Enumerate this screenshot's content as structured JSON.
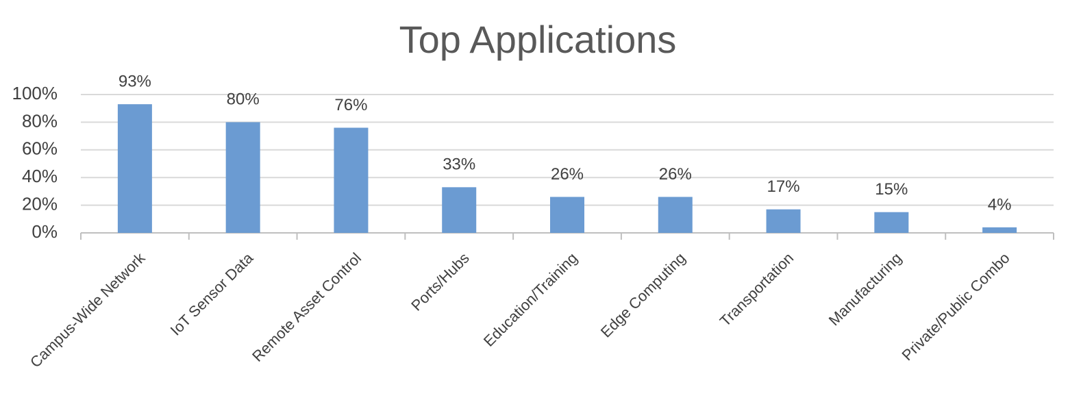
{
  "chart_data": {
    "type": "bar",
    "title": "Top Applications",
    "categories": [
      "Campus-Wide Network",
      "IoT Sensor Data",
      "Remote Asset Control",
      "Ports/Hubs",
      "Education/Training",
      "Edge Computing",
      "Transportation",
      "Manufacturing",
      "Private/Public Combo"
    ],
    "values": [
      93,
      80,
      76,
      33,
      26,
      26,
      17,
      15,
      4
    ],
    "value_labels": [
      "93%",
      "80%",
      "76%",
      "33%",
      "26%",
      "26%",
      "17%",
      "15%",
      "4%"
    ],
    "color": "#6b9bd2",
    "ylim": [
      0,
      100
    ],
    "yticks": [
      {
        "value": 0,
        "label": "0%"
      },
      {
        "value": 20,
        "label": "20%"
      },
      {
        "value": 40,
        "label": "40%"
      },
      {
        "value": 60,
        "label": "60%"
      },
      {
        "value": 80,
        "label": "80%"
      },
      {
        "value": 100,
        "label": "100%"
      }
    ],
    "grid": true
  }
}
